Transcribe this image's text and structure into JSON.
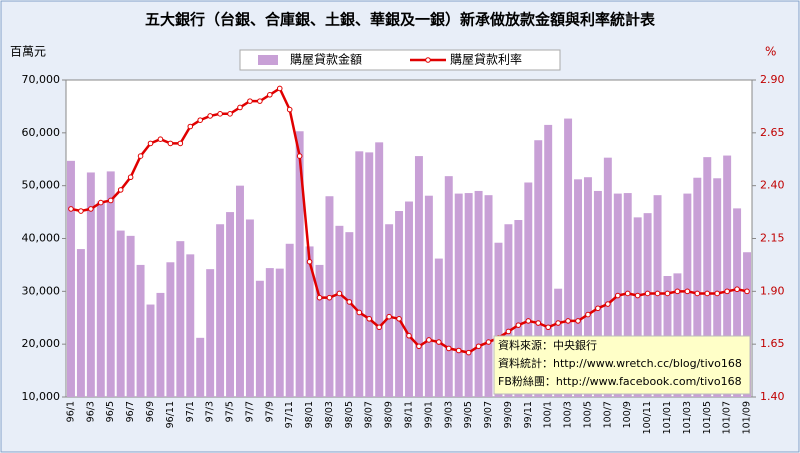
{
  "chart_data": {
    "type": "bar",
    "title": "五大銀行（台銀、合庫銀、土銀、華銀及一銀）新承做放款金額與利率統計表",
    "y_label": "百萬元",
    "y2_label": "%",
    "categories": [
      "96/1",
      null,
      "96/3",
      null,
      "96/5",
      null,
      "96/7",
      null,
      "96/9",
      null,
      "96/11",
      null,
      "97/1",
      null,
      "97/3",
      null,
      "97/5",
      null,
      "97/7",
      null,
      "97/9",
      null,
      "97/11",
      null,
      "98/01",
      null,
      "98/03",
      null,
      "98/05",
      null,
      "98/07",
      null,
      "98/09",
      null,
      "98/11",
      null,
      "99/01",
      null,
      "99/03",
      null,
      "99/05",
      null,
      "99/07",
      null,
      "99/09",
      null,
      "99/11",
      null,
      "100/1",
      null,
      "100/3",
      null,
      "100/5",
      null,
      "100/7",
      null,
      "100/9",
      null,
      "100/11",
      null,
      "101/01",
      null,
      "101/03",
      null,
      "101/05",
      null,
      "101/07",
      null,
      "101/09"
    ],
    "series": [
      {
        "name": "購屋貸款金額",
        "type": "bar",
        "color": "#c8a0d6",
        "values": [
          54700,
          38000,
          52500,
          47000,
          52700,
          41500,
          40500,
          35000,
          27500,
          29700,
          35500,
          39500,
          37000,
          21200,
          34200,
          42700,
          45000,
          50000,
          43600,
          32000,
          34400,
          34300,
          39000,
          60300,
          38500,
          35000,
          48000,
          42400,
          41200,
          56500,
          56300,
          58200,
          42700,
          45200,
          47000,
          55600,
          48100,
          36200,
          51800,
          48500,
          48600,
          49000,
          48200,
          39200,
          42700,
          43500,
          50600,
          58600,
          61500,
          30500,
          62700,
          51200,
          51600,
          49000,
          55300,
          48500,
          48600,
          44000,
          44800,
          48200,
          32900,
          33400,
          48500,
          51500,
          55400,
          51400,
          55700,
          45700,
          37400
        ]
      },
      {
        "name": "購屋貸款利率",
        "type": "line",
        "axis": "y2",
        "color": "#e00000",
        "values": [
          2.29,
          2.28,
          2.29,
          2.32,
          2.33,
          2.38,
          2.44,
          2.54,
          2.6,
          2.62,
          2.6,
          2.6,
          2.68,
          2.71,
          2.73,
          2.74,
          2.74,
          2.77,
          2.8,
          2.8,
          2.83,
          2.86,
          2.76,
          2.54,
          2.04,
          1.87,
          1.87,
          1.89,
          1.85,
          1.8,
          1.77,
          1.73,
          1.78,
          1.77,
          1.69,
          1.64,
          1.67,
          1.66,
          1.63,
          1.62,
          1.61,
          1.64,
          1.66,
          1.68,
          1.71,
          1.74,
          1.76,
          1.75,
          1.73,
          1.75,
          1.76,
          1.76,
          1.79,
          1.82,
          1.84,
          1.88,
          1.89,
          1.88,
          1.89,
          1.89,
          1.89,
          1.9,
          1.9,
          1.89,
          1.89,
          1.89,
          1.9,
          1.91,
          1.9
        ]
      }
    ],
    "ylim": [
      10000,
      70000
    ],
    "yticks": [
      {
        "value": 10000,
        "label": "10,000"
      },
      {
        "value": 20000,
        "label": "20,000"
      },
      {
        "value": 30000,
        "label": "30,000"
      },
      {
        "value": 40000,
        "label": "40,000"
      },
      {
        "value": 50000,
        "label": "50,000"
      },
      {
        "value": 60000,
        "label": "60,000"
      },
      {
        "value": 70000,
        "label": "70,000"
      }
    ],
    "y2lim": [
      1.4,
      2.9
    ],
    "y2ticks": [
      {
        "value": 1.4,
        "label": "1.40"
      },
      1.65,
      {
        "value": 1.9,
        "label": "1.90"
      },
      2.15,
      {
        "value": 2.4,
        "label": "2.40"
      },
      2.65,
      {
        "value": 2.9,
        "label": "2.90"
      }
    ],
    "grid": false,
    "legend": "top",
    "annotations": [
      "資料來源：中央銀行",
      "資料統計：http://www.wretch.cc/blog/tivo168",
      "FB粉絲團：http://www.facebook.com/tivo168"
    ]
  }
}
